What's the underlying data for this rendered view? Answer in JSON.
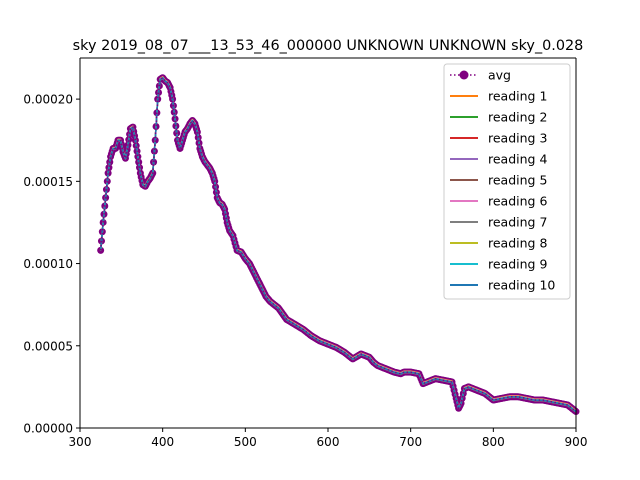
{
  "chart_data": {
    "type": "line",
    "title": "sky 2019_08_07___13_53_46_000000 UNKNOWN UNKNOWN sky_0.028",
    "xlabel": "",
    "ylabel": "",
    "xlim": [
      300,
      900
    ],
    "ylim": [
      0,
      0.000225
    ],
    "grid": false,
    "legend_position": "top-right",
    "x_ticks": [
      300,
      400,
      500,
      600,
      700,
      800,
      900
    ],
    "x_tick_labels": [
      "300",
      "400",
      "500",
      "600",
      "700",
      "800",
      "900"
    ],
    "y_ticks": [
      0,
      5e-05,
      0.0001,
      0.00015,
      0.0002
    ],
    "y_tick_labels": [
      "0.00000",
      "0.00005",
      "0.00010",
      "0.00015",
      "0.00020"
    ],
    "spectrum": {
      "x": [
        325,
        328,
        331,
        334,
        337,
        340,
        343,
        346,
        349,
        352,
        355,
        358,
        361,
        364,
        367,
        370,
        373,
        376,
        379,
        382,
        385,
        388,
        391,
        394,
        397,
        400,
        403,
        406,
        409,
        412,
        415,
        418,
        421,
        424,
        427,
        430,
        433,
        436,
        439,
        442,
        445,
        448,
        451,
        454,
        457,
        460,
        463,
        466,
        469,
        472,
        475,
        478,
        481,
        485,
        490,
        495,
        500,
        505,
        510,
        515,
        520,
        525,
        530,
        540,
        550,
        560,
        570,
        580,
        590,
        600,
        610,
        620,
        630,
        640,
        650,
        655,
        660,
        670,
        680,
        688,
        692,
        700,
        710,
        715,
        720,
        725,
        730,
        740,
        750,
        755,
        758,
        761,
        765,
        770,
        775,
        780,
        790,
        800,
        810,
        820,
        830,
        840,
        850,
        860,
        870,
        880,
        890,
        900
      ],
      "y": [
        0.000108,
        0.000125,
        0.00014,
        0.000155,
        0.000165,
        0.00017,
        0.00017,
        0.000175,
        0.000175,
        0.000168,
        0.000164,
        0.000172,
        0.000182,
        0.000183,
        0.000175,
        0.000165,
        0.000155,
        0.000148,
        0.000147,
        0.00015,
        0.000152,
        0.000155,
        0.000175,
        0.0002,
        0.000212,
        0.000213,
        0.000211,
        0.00021,
        0.000207,
        0.0002,
        0.000188,
        0.000175,
        0.00017,
        0.000175,
        0.00018,
        0.000182,
        0.000185,
        0.000187,
        0.000185,
        0.00018,
        0.00017,
        0.000165,
        0.000162,
        0.00016,
        0.000158,
        0.000155,
        0.00015,
        0.00014,
        0.000137,
        0.000136,
        0.000133,
        0.000125,
        0.00012,
        0.000117,
        0.000108,
        0.000107,
        0.000103,
        0.0001,
        9.5e-05,
        9e-05,
        8.5e-05,
        8e-05,
        7.7e-05,
        7.3e-05,
        6.6e-05,
        6.3e-05,
        6e-05,
        5.6e-05,
        5.3e-05,
        5.1e-05,
        4.9e-05,
        4.6e-05,
        4.2e-05,
        4.5e-05,
        4.3e-05,
        4e-05,
        3.8e-05,
        3.6e-05,
        3.4e-05,
        3.3e-05,
        3.4e-05,
        3.4e-05,
        3.3e-05,
        2.7e-05,
        2.8e-05,
        2.9e-05,
        3e-05,
        2.9e-05,
        2.8e-05,
        1.8e-05,
        1.2e-05,
        1.5e-05,
        2.4e-05,
        2.5e-05,
        2.4e-05,
        2.3e-05,
        2.1e-05,
        1.7e-05,
        1.8e-05,
        1.9e-05,
        1.9e-05,
        1.8e-05,
        1.7e-05,
        1.7e-05,
        1.6e-05,
        1.5e-05,
        1.4e-05,
        1e-05
      ]
    },
    "series": [
      {
        "name": "avg",
        "color": "#800080",
        "style": "dotted-marker"
      },
      {
        "name": "reading 1",
        "color": "#ff7f0e"
      },
      {
        "name": "reading 2",
        "color": "#2ca02c"
      },
      {
        "name": "reading 3",
        "color": "#d62728"
      },
      {
        "name": "reading 4",
        "color": "#9467bd"
      },
      {
        "name": "reading 5",
        "color": "#8c564b"
      },
      {
        "name": "reading 6",
        "color": "#e377c2"
      },
      {
        "name": "reading 7",
        "color": "#7f7f7f"
      },
      {
        "name": "reading 8",
        "color": "#bcbd22"
      },
      {
        "name": "reading 9",
        "color": "#17becf"
      },
      {
        "name": "reading 10",
        "color": "#1f77b4"
      }
    ]
  }
}
